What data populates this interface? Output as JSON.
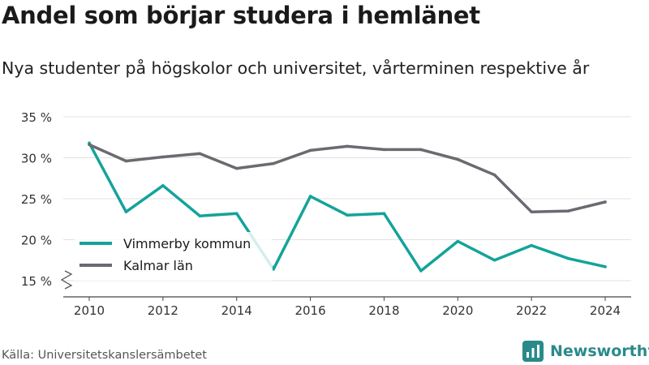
{
  "title": "Andel som börjar studera i hemlänet",
  "subtitle": "Nya studenter på högskolor och universitet, vårterminen respektive år",
  "source": "Källa: Universitetskanslersämbetet",
  "brand": {
    "name": "Newsworthy",
    "icon": "newsworthy-logo-icon",
    "color": "#2a8a8a"
  },
  "chart_data": {
    "type": "line",
    "x": [
      2010,
      2011,
      2012,
      2013,
      2014,
      2015,
      2016,
      2017,
      2018,
      2019,
      2020,
      2021,
      2022,
      2023,
      2024
    ],
    "xticks": [
      2010,
      2012,
      2014,
      2016,
      2018,
      2020,
      2022,
      2024
    ],
    "yticks": [
      15,
      20,
      25,
      30,
      35
    ],
    "ytick_labels": [
      "15 %",
      "20 %",
      "25 %",
      "30 %",
      "35 %"
    ],
    "ylim": [
      15,
      35
    ],
    "axis_break": true,
    "grid": "horizontal",
    "legend_position": "bottom-left",
    "series": [
      {
        "name": "Vimmerby kommun",
        "color": "#14a39a",
        "values": [
          31.8,
          23.4,
          26.6,
          22.9,
          23.2,
          16.4,
          25.3,
          23.0,
          23.2,
          16.2,
          19.8,
          17.5,
          19.3,
          17.7,
          16.7
        ]
      },
      {
        "name": "Kalmar län",
        "color": "#6b6a70",
        "values": [
          31.6,
          29.6,
          30.1,
          30.5,
          28.7,
          29.3,
          30.9,
          31.4,
          31.0,
          31.0,
          29.8,
          27.9,
          23.4,
          23.5,
          24.6
        ]
      }
    ]
  }
}
